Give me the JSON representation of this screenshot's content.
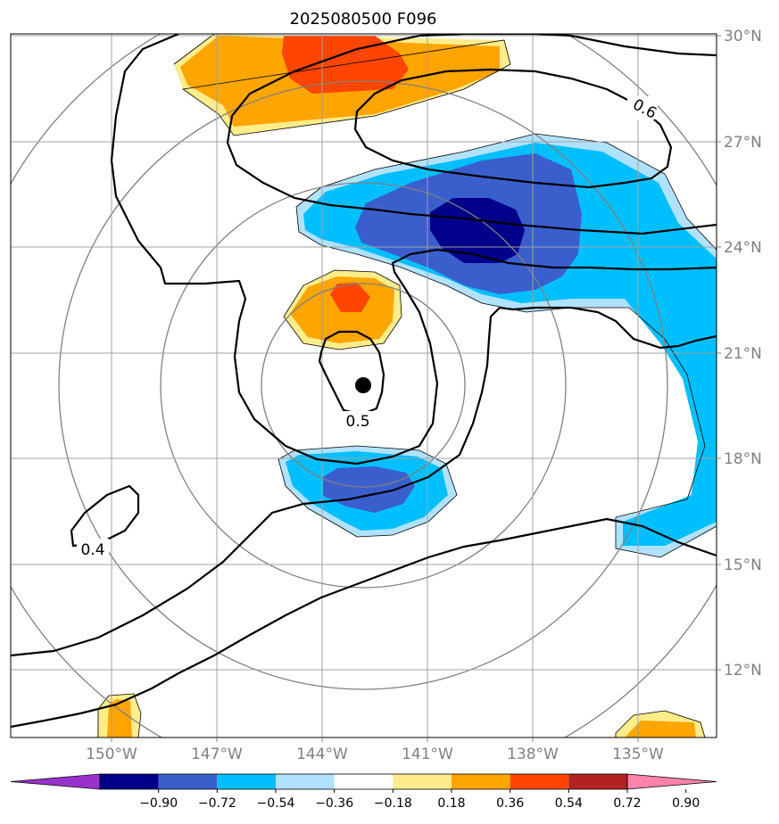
{
  "title": "2025080500 F096",
  "lat_labels": [
    "30°N",
    "27°N",
    "24°N",
    "21°N",
    "18°N",
    "15°N",
    "12°N"
  ],
  "lon_labels": [
    "150°W",
    "147°W",
    "144°W",
    "141°W",
    "138°W",
    "135°W"
  ],
  "contour_labels": [
    "0.6",
    "0.5",
    "0.4"
  ],
  "colorbar": {
    "tick_labels": [
      "−0.90",
      "−0.72",
      "−0.54",
      "−0.36",
      "−0.18",
      "0.18",
      "0.36",
      "0.54",
      "0.72",
      "0.90"
    ],
    "colors": [
      "#9932cc",
      "#00008b",
      "#3a5fcd",
      "#00bfff",
      "#b0e2ff",
      "#ffffff",
      "#ffec8b",
      "#ffa500",
      "#ff4500",
      "#b22222",
      "#ff82ab"
    ]
  },
  "storm_center": "black-dot",
  "fill_colors": {
    "light_yellow": "#ffec8b",
    "orange": "#ffa500",
    "red_orange": "#ff4500",
    "light_blue": "#b0e2ff",
    "deep_sky_blue": "#00bfff",
    "royal_blue": "#3a5fcd",
    "navy": "#00008b"
  }
}
